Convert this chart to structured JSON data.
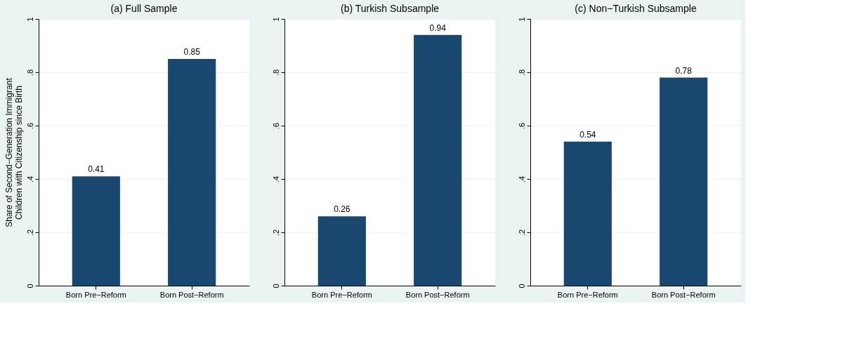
{
  "chart_data": [
    {
      "type": "bar",
      "title": "(a) Full Sample",
      "ylabel": "Share of Second−Generation Immigrant\nChildren with Citizenship since Birth",
      "categories": [
        "Born Pre−Reform",
        "Born Post−Reform"
      ],
      "values": [
        0.41,
        0.85
      ],
      "color": "#1a476f",
      "ylim": [
        0,
        1
      ],
      "yticks": [
        0,
        {
          "value": 0.2,
          "label": ".2"
        },
        {
          "value": 0.4,
          "label": ".4"
        },
        {
          "value": 0.6,
          "label": ".6"
        },
        {
          "value": 0.8,
          "label": ".8"
        },
        1
      ],
      "grid": "y",
      "data_labels": true
    },
    {
      "type": "bar",
      "title": "(b) Turkish Subsample",
      "categories": [
        "Born Pre−Reform",
        "Born Post−Reform"
      ],
      "values": [
        0.26,
        0.94
      ],
      "color": "#1a476f",
      "ylim": [
        0,
        1
      ],
      "yticks": [
        0,
        {
          "value": 0.2,
          "label": ".2"
        },
        {
          "value": 0.4,
          "label": ".4"
        },
        {
          "value": 0.6,
          "label": ".6"
        },
        {
          "value": 0.8,
          "label": ".8"
        },
        1
      ],
      "grid": "y",
      "data_labels": true
    },
    {
      "type": "bar",
      "title": "(c) Non−Turkish Subsample",
      "categories": [
        "Born Pre−Reform",
        "Born Post−Reform"
      ],
      "values": [
        0.54,
        0.78
      ],
      "color": "#1a476f",
      "ylim": [
        0,
        1
      ],
      "yticks": [
        0,
        {
          "value": 0.2,
          "label": ".2"
        },
        {
          "value": 0.4,
          "label": ".4"
        },
        {
          "value": 0.6,
          "label": ".6"
        },
        {
          "value": 0.8,
          "label": ".8"
        },
        1
      ],
      "grid": "y",
      "data_labels": true
    }
  ]
}
